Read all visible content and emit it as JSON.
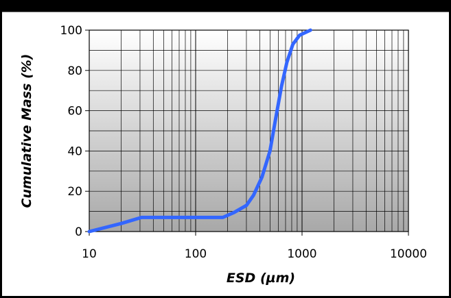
{
  "chart_data": {
    "type": "line",
    "title": "",
    "xlabel": "ESD (µm)",
    "ylabel": "Cumulative Mass (%)",
    "x_scale": "log",
    "xlim": [
      10,
      10000
    ],
    "ylim": [
      0,
      100
    ],
    "x_ticks": [
      10,
      100,
      1000,
      10000
    ],
    "x_tick_labels": [
      "10",
      "100",
      "1000",
      "10000"
    ],
    "y_ticks": [
      0,
      20,
      40,
      60,
      80,
      100
    ],
    "y_tick_labels": [
      "0",
      "20",
      "40",
      "60",
      "80",
      "100"
    ],
    "grid": true,
    "legend": "none",
    "series": [
      {
        "color": "#3366ff",
        "x": [
          10,
          20,
          31,
          50,
          100,
          180,
          230,
          300,
          350,
          420,
          500,
          560,
          640,
          720,
          820,
          950,
          1200
        ],
        "y": [
          0,
          4,
          7,
          7,
          7,
          7,
          9.5,
          13,
          18,
          27,
          40,
          55,
          72,
          84,
          93,
          97.5,
          100
        ]
      }
    ],
    "colors": {
      "frame": "#000000",
      "plot_gradient_top": "#ffffff",
      "plot_gradient_bottom": "#a8a8a8",
      "gridline": "#000000"
    }
  }
}
